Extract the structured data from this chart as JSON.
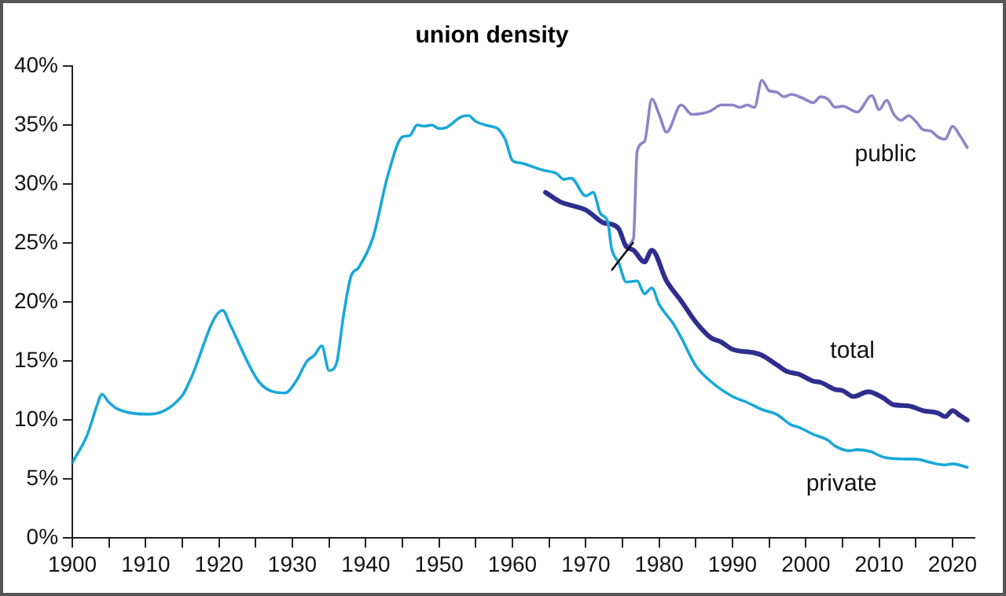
{
  "chart_data": {
    "type": "line",
    "title": "union density",
    "xlim": [
      1900,
      2023
    ],
    "ylim": [
      0,
      40
    ],
    "xticks": [
      1900,
      {
        "value": 1905,
        "label": null
      },
      1910,
      {
        "value": 1915,
        "label": null
      },
      1920,
      {
        "value": 1925,
        "label": null
      },
      1930,
      {
        "value": 1935,
        "label": null
      },
      1940,
      {
        "value": 1945,
        "label": null
      },
      1950,
      {
        "value": 1955,
        "label": null
      },
      1960,
      {
        "value": 1965,
        "label": null
      },
      1970,
      {
        "value": 1975,
        "label": null
      },
      1980,
      {
        "value": 1985,
        "label": null
      },
      1990,
      {
        "value": 1995,
        "label": null
      },
      2000,
      {
        "value": 2005,
        "label": null
      },
      2010,
      {
        "value": 2015,
        "label": null
      },
      2020
    ],
    "yticks": [
      {
        "value": 0,
        "label": "0%"
      },
      {
        "value": 5,
        "label": "5%"
      },
      {
        "value": 10,
        "label": "10%"
      },
      {
        "value": 15,
        "label": "15%"
      },
      {
        "value": 20,
        "label": "20%"
      },
      {
        "value": 25,
        "label": "25%"
      },
      {
        "value": 30,
        "label": "30%"
      },
      {
        "value": 35,
        "label": "35%"
      },
      {
        "value": 40,
        "label": "40%"
      }
    ],
    "grid": false,
    "legend": false,
    "marker": "none",
    "line_style": "solid",
    "series": [
      {
        "name": "private",
        "color": "#1aa7d9",
        "x": [
          1900,
          1902,
          1903.5,
          1904,
          1905,
          1906,
          1910.5,
          1915,
          1916,
          1920.5,
          1921.5,
          1925.5,
          1929,
          1930.5,
          1932,
          1933,
          1934,
          1935,
          1936,
          1937,
          1938,
          1939,
          1941,
          1943,
          1945,
          1946,
          1947,
          1948,
          1949,
          1950,
          1951,
          1953,
          1954,
          1955,
          1957,
          1958,
          1959,
          1960,
          1961,
          1964,
          1966,
          1967,
          1968,
          1970,
          1971,
          1972,
          1973,
          1973.5,
          1974.5,
          1975.5,
          1977,
          1978,
          1979,
          1980,
          1982,
          1983,
          1985,
          1987,
          1990,
          1992,
          1994,
          1996,
          1998,
          1999,
          2001,
          2003,
          2004,
          2006,
          2007,
          2009,
          2010,
          2011,
          2014,
          2015,
          2017,
          2019,
          2020,
          2022
        ],
        "values": [
          6.4,
          8.7,
          11.5,
          12.2,
          11.5,
          11.0,
          10.5,
          12.1,
          13.3,
          19.3,
          18.1,
          13.2,
          12.3,
          13.3,
          15.0,
          15.5,
          16.3,
          14.2,
          14.8,
          19.0,
          22.2,
          22.9,
          25.5,
          30.7,
          34.0,
          34.1,
          35.0,
          34.9,
          35.0,
          34.7,
          34.8,
          35.7,
          35.8,
          35.3,
          34.9,
          34.7,
          33.8,
          32.0,
          31.8,
          31.2,
          30.9,
          30.4,
          30.5,
          29.0,
          29.3,
          27.5,
          26.8,
          24.6,
          23.3,
          21.7,
          21.8,
          20.7,
          21.2,
          19.8,
          18.1,
          17.0,
          14.6,
          13.3,
          12.0,
          11.5,
          10.9,
          10.5,
          9.6,
          9.4,
          8.8,
          8.3,
          7.8,
          7.4,
          7.5,
          7.3,
          7.0,
          6.8,
          6.7,
          6.7,
          6.4,
          6.2,
          6.3,
          6.0
        ]
      },
      {
        "name": "total",
        "color": "#2e2e8f",
        "x": [
          1964.5,
          1966.5,
          1968,
          1970,
          1972.5,
          1973.5,
          1974.5,
          1975.5,
          1976.5,
          1978,
          1979,
          1981,
          1983,
          1985,
          1987,
          1988.5,
          1990,
          1993,
          1994,
          1996,
          1997.5,
          1999,
          2001,
          2002,
          2004,
          2005,
          2006.5,
          2008.5,
          2010.5,
          2012,
          2014,
          2016,
          2018,
          2019,
          2020,
          2021,
          2022
        ],
        "values": [
          29.3,
          28.5,
          28.2,
          27.8,
          26.7,
          26.6,
          26.2,
          24.7,
          24.4,
          23.4,
          24.4,
          21.8,
          20.1,
          18.3,
          17.0,
          16.6,
          16.0,
          15.7,
          15.5,
          14.7,
          14.1,
          13.9,
          13.3,
          13.2,
          12.6,
          12.5,
          12.0,
          12.4,
          11.9,
          11.3,
          11.2,
          10.8,
          10.6,
          10.3,
          10.8,
          10.4,
          10.0
        ]
      },
      {
        "name": "public",
        "color": "#8b85c7",
        "x": [
          1975.5,
          1976.5,
          1977,
          1978,
          1979,
          1980,
          1981,
          1983,
          1984.5,
          1986,
          1987,
          1988.5,
          1990,
          1991,
          1992,
          1993,
          1994,
          1995,
          1996,
          1997,
          1998,
          1999.5,
          2001,
          2002,
          2003,
          2004,
          2005,
          2007,
          2009,
          2010,
          2011,
          2012,
          2013,
          2014,
          2015,
          2016,
          2017,
          2018,
          2019,
          2020,
          2021,
          2022
        ],
        "values": [
          24.8,
          25.4,
          32.8,
          33.6,
          37.2,
          35.9,
          34.4,
          36.7,
          35.9,
          36.0,
          36.2,
          36.7,
          36.7,
          36.5,
          36.7,
          36.5,
          38.8,
          37.9,
          37.8,
          37.4,
          37.6,
          37.3,
          36.9,
          37.4,
          37.2,
          36.5,
          36.6,
          36.1,
          37.5,
          36.3,
          37.1,
          35.9,
          35.4,
          35.8,
          35.3,
          34.6,
          34.5,
          34.0,
          33.8,
          34.9,
          34.1,
          33.1
        ]
      }
    ]
  }
}
